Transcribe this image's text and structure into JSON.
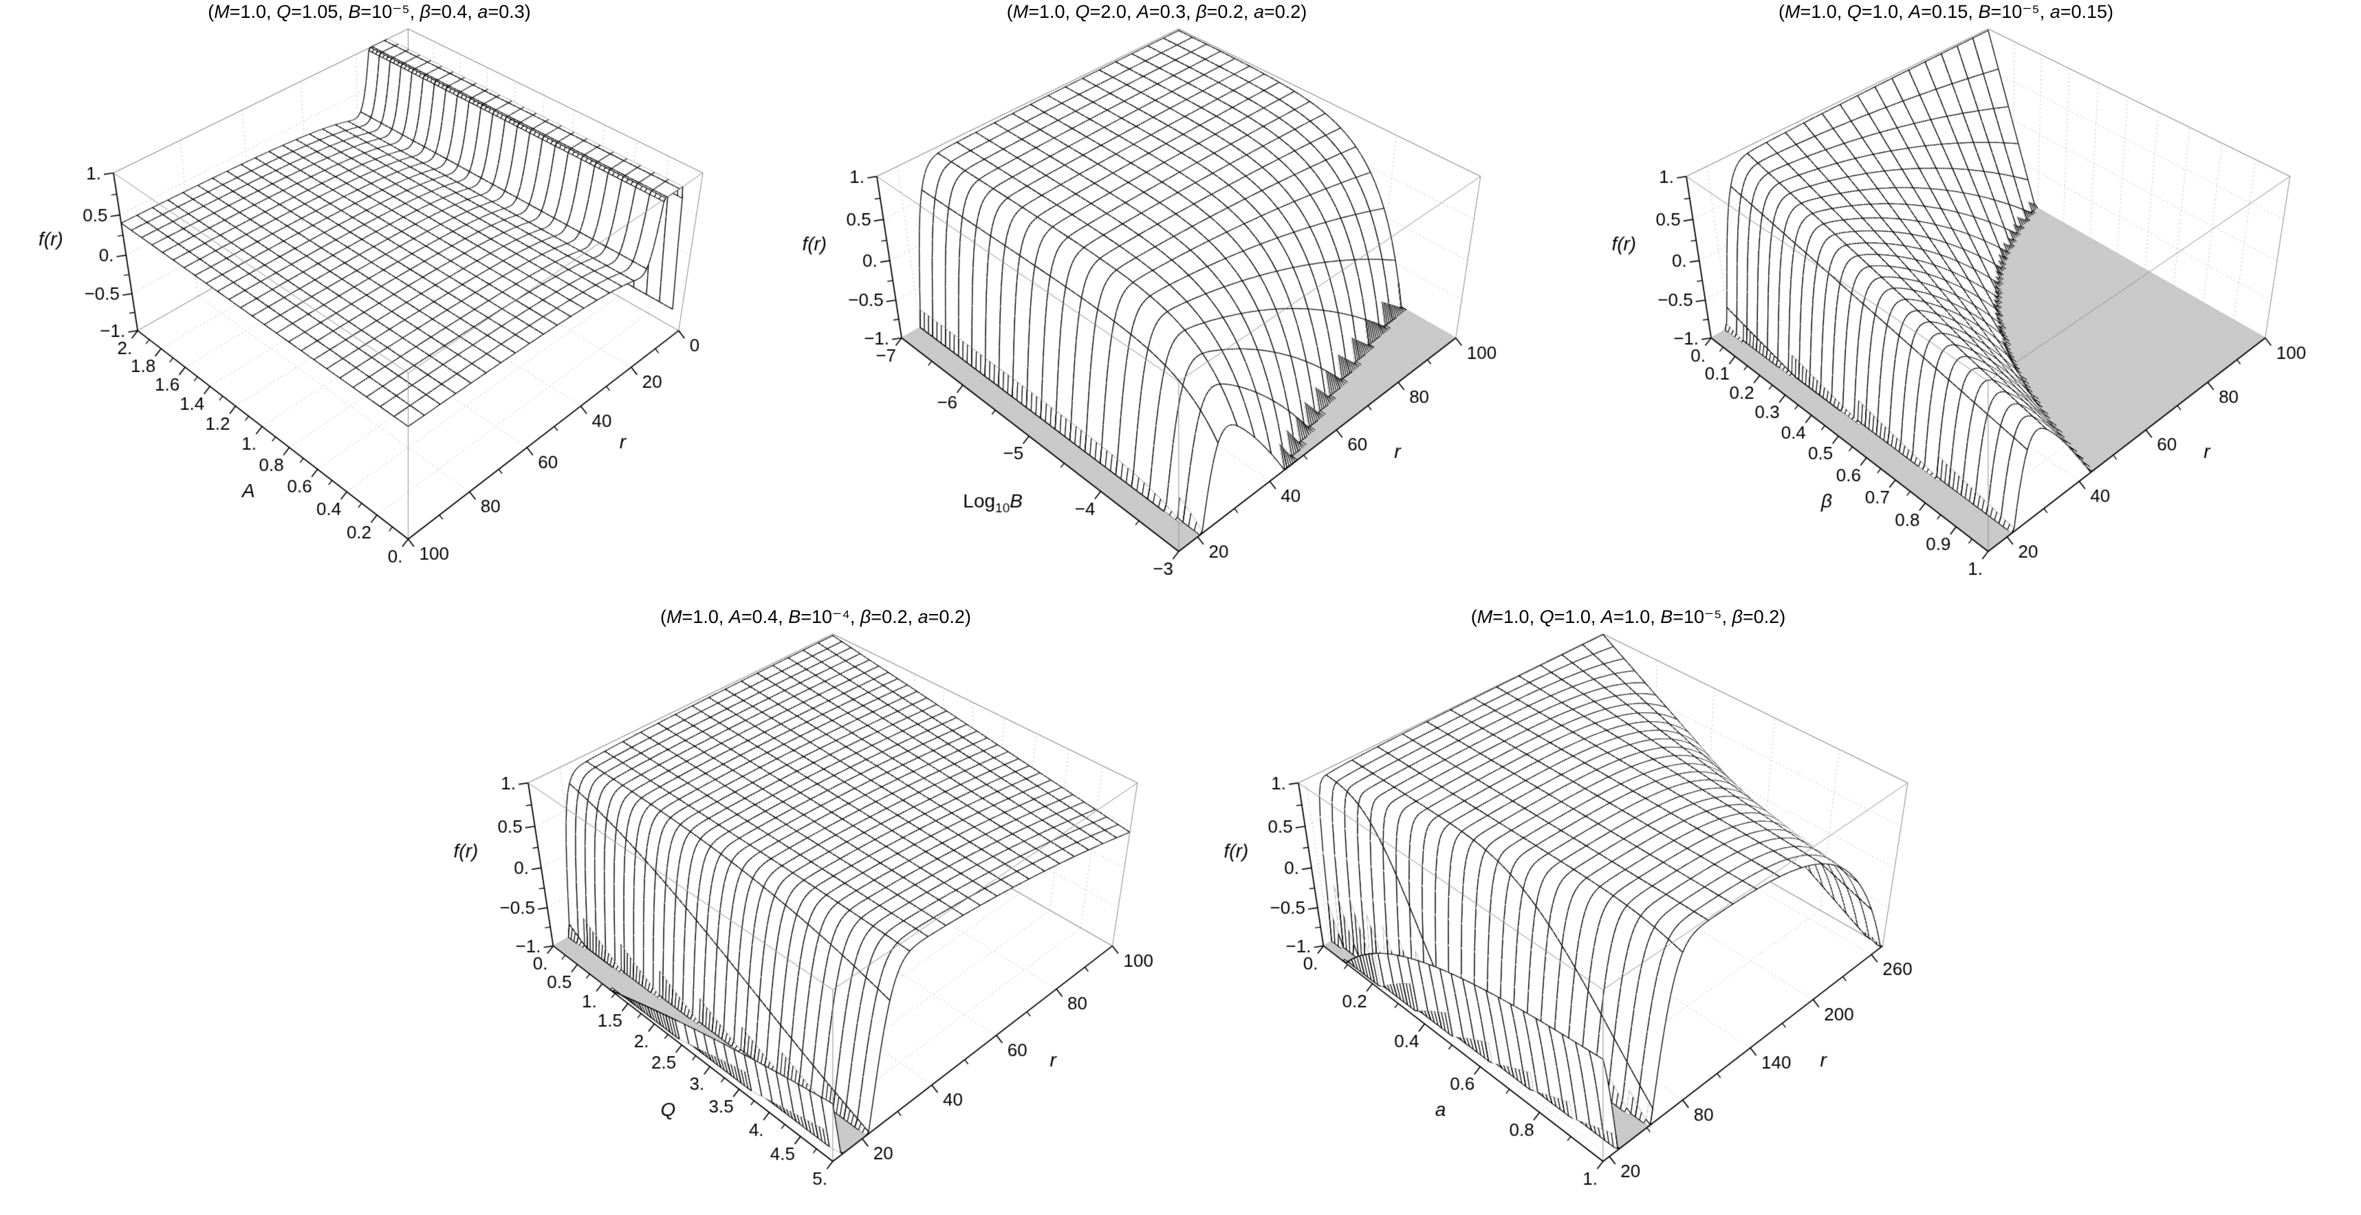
{
  "figure": {
    "kind": "5-panel 3D surface figure (Mathematica-style Plot3D wireframes of a black-hole metric function)",
    "background": "#ffffff",
    "colors": {
      "mesh": "#000000",
      "surface_fill": "#ffffff",
      "clip_fill": "#c9c9c9",
      "box_edge": "#8f8f8f",
      "grid_faint": "#bdbdbd",
      "text": "#000000"
    }
  },
  "chart_data": [
    {
      "type": "surface",
      "title": "(M=1.0, Q=1.05, B=10⁻⁵, β=0.4, a=0.3)",
      "fixed_parameters": {
        "M": "1.0",
        "Q": "1.05",
        "B": "10⁻⁵",
        "β": "0.4",
        "a": "0.3"
      },
      "z_axis": {
        "label": "f(r)",
        "range": [
          -1,
          1
        ],
        "ticks": [
          {
            "v": 1,
            "label": "1."
          },
          {
            "v": 0.5,
            "label": "0.5"
          },
          {
            "v": 0,
            "label": "0."
          },
          {
            "v": -0.5,
            "label": "−0.5"
          },
          {
            "v": -1,
            "label": "−1."
          }
        ]
      },
      "param_axis": {
        "label": "A",
        "range": [
          2,
          0
        ],
        "ticks": [
          {
            "v": 2,
            "label": "2."
          },
          {
            "v": 1.8,
            "label": "1.8"
          },
          {
            "v": 1.6,
            "label": "1.6"
          },
          {
            "v": 1.4,
            "label": "1.4"
          },
          {
            "v": 1.2,
            "label": "1.2"
          },
          {
            "v": 1,
            "label": "1."
          },
          {
            "v": 0.8,
            "label": "0.8"
          },
          {
            "v": 0.6,
            "label": "0.6"
          },
          {
            "v": 0.4,
            "label": "0.4"
          },
          {
            "v": 0.2,
            "label": "0.2"
          },
          {
            "v": 0,
            "label": "0."
          }
        ]
      },
      "r_axis": {
        "label": "r",
        "range": [
          100,
          0
        ],
        "ticks": [
          {
            "v": 0,
            "label": "0"
          },
          {
            "v": 20,
            "label": "20"
          },
          {
            "v": 40,
            "label": "40"
          },
          {
            "v": 60,
            "label": "60"
          },
          {
            "v": 80,
            "label": "80"
          },
          {
            "v": 100,
            "label": "100"
          }
        ]
      },
      "mesh": {
        "param_lines": 25,
        "r_lines": 21,
        "sub_param": 3,
        "sub_r": 8
      },
      "surface_model": {
        "c0": 0.46,
        "c1": -6,
        "c2": 0,
        "dip": {
          "d0": 2.2,
          "d1": 0,
          "r0": 11,
          "r1": 0,
          "w0": 4.5,
          "w1": 0
        },
        "droop": {
          "k0": 0,
          "k1": 0,
          "rref": 100,
          "pow": 2
        },
        "r_surface": [
          4.5,
          100
        ]
      },
      "clip": {
        "low": -1,
        "high": 1
      },
      "notes": "Flat low plateau f≈0.1–0.45 over most of (A,r); sharp ridge near r≈11 diverges upward and is clipped at f=1, forming a wall of vertical mesh spikes across all A."
    },
    {
      "type": "surface",
      "title": "(M=1.0, Q=2.0, A=0.3, β=0.2, a=0.2)",
      "fixed_parameters": {
        "M": "1.0",
        "Q": "2.0",
        "A": "0.3",
        "β": "0.2",
        "a": "0.2"
      },
      "z_axis": {
        "label": "f(r)",
        "range": [
          -1,
          1
        ],
        "ticks": [
          {
            "v": 1,
            "label": "1."
          },
          {
            "v": 0.5,
            "label": "0.5"
          },
          {
            "v": 0,
            "label": "0."
          },
          {
            "v": -0.5,
            "label": "−0.5"
          },
          {
            "v": -1,
            "label": "−1."
          }
        ]
      },
      "param_axis": {
        "label": "Log₁₀B",
        "range": [
          -7,
          -3
        ],
        "ticks": [
          {
            "v": -7,
            "label": "−7"
          },
          {
            "v": -6,
            "label": "−6"
          },
          {
            "v": -5,
            "label": "−5"
          },
          {
            "v": -4,
            "label": "−4"
          },
          {
            "v": -3,
            "label": "−3"
          }
        ]
      },
      "r_axis": {
        "label": "r",
        "range": [
          15,
          100
        ],
        "ticks": [
          {
            "v": 20,
            "label": "20"
          },
          {
            "v": 40,
            "label": "40"
          },
          {
            "v": 60,
            "label": "60"
          },
          {
            "v": 80,
            "label": "80"
          },
          {
            "v": 100,
            "label": "100"
          }
        ]
      },
      "mesh": {
        "param_lines": 20,
        "r_lines": 18,
        "sub_param": 3,
        "sub_r": 8
      },
      "surface_model": {
        "c0": 1,
        "c1": -2,
        "c2": 4,
        "dip": {
          "d0": -2.6,
          "d1": 0,
          "r0": 17,
          "r1": 0,
          "w0": 5.5,
          "w1": 0
        },
        "droop_exp": {
          "a0": -7,
          "a1": 4,
          "pow": 2
        },
        "r_surface": [
          15,
          100
        ]
      },
      "clip": {
        "low": -1,
        "high": 1
      },
      "notes": "Comb of deep V-dips (clipped at f=−1) near r≈15–20 for every B; plateau f≈0.9; for large B (Log₁₀B→−3) the −B r² term drags f below −1 for r≳40, shown as a gray clipped triangle at the front-right corner."
    },
    {
      "type": "surface",
      "title": "(M=1.0, Q=1.0, A=0.15, B=10⁻⁵, a=0.15)",
      "fixed_parameters": {
        "M": "1.0",
        "Q": "1.0",
        "A": "0.15",
        "B": "10⁻⁵",
        "a": "0.15"
      },
      "z_axis": {
        "label": "f(r)",
        "range": [
          -1,
          1
        ],
        "ticks": [
          {
            "v": 1,
            "label": "1."
          },
          {
            "v": 0.5,
            "label": "0.5"
          },
          {
            "v": 0,
            "label": "0."
          },
          {
            "v": -0.5,
            "label": "−0.5"
          },
          {
            "v": -1,
            "label": "−1."
          }
        ]
      },
      "param_axis": {
        "label": "β",
        "range": [
          0,
          1
        ],
        "ticks": [
          {
            "v": 0,
            "label": "0."
          },
          {
            "v": 0.1,
            "label": "0.1"
          },
          {
            "v": 0.2,
            "label": "0.2"
          },
          {
            "v": 0.3,
            "label": "0.3"
          },
          {
            "v": 0.4,
            "label": "0.4"
          },
          {
            "v": 0.5,
            "label": "0.5"
          },
          {
            "v": 0.6,
            "label": "0.6"
          },
          {
            "v": 0.7,
            "label": "0.7"
          },
          {
            "v": 0.8,
            "label": "0.8"
          },
          {
            "v": 0.9,
            "label": "0.9"
          },
          {
            "v": 1,
            "label": "1."
          }
        ]
      },
      "r_axis": {
        "label": "r",
        "range": [
          15,
          100
        ],
        "ticks": [
          {
            "v": 20,
            "label": "20"
          },
          {
            "v": 40,
            "label": "40"
          },
          {
            "v": 60,
            "label": "60"
          },
          {
            "v": 80,
            "label": "80"
          },
          {
            "v": 100,
            "label": "100"
          }
        ]
      },
      "mesh": {
        "param_lines": 26,
        "r_lines": 18,
        "sub_param": 3,
        "sub_r": 8
      },
      "surface_model": {
        "c0": 1,
        "c1": -2,
        "c2": 1,
        "dip": {
          "d0": -2.2,
          "d1": -0.8,
          "r0": 17,
          "r1": 0,
          "w0": 5.5,
          "w1": 0
        },
        "droop": {
          "k0": 0,
          "k1": 1,
          "rref": 31,
          "pow": 2
        },
        "r_surface": [
          15,
          100
        ]
      },
      "clip": {
        "low": -1,
        "high": 1
      },
      "notes": "Comb of clipped V-dips near r≈15–20 for every β; plateau f≈0.9; increasing β pulls f below −1 at large r, producing a large gray clipped wedge spreading from the front-right corner (r≈40 at β=1 up to much of the r=100 edge)."
    },
    {
      "type": "surface",
      "title": "(M=1.0, A=0.4, B=10⁻⁴, β=0.2, a=0.2)",
      "fixed_parameters": {
        "M": "1.0",
        "A": "0.4",
        "B": "10⁻⁴",
        "β": "0.2",
        "a": "0.2"
      },
      "z_axis": {
        "label": "f(r)",
        "range": [
          -1,
          1
        ],
        "ticks": [
          {
            "v": 1,
            "label": "1."
          },
          {
            "v": 0.5,
            "label": "0.5"
          },
          {
            "v": 0,
            "label": "0."
          },
          {
            "v": -0.5,
            "label": "−0.5"
          },
          {
            "v": -1,
            "label": "−1."
          }
        ]
      },
      "param_axis": {
        "label": "Q",
        "range": [
          0,
          5
        ],
        "ticks": [
          {
            "v": 0,
            "label": "0."
          },
          {
            "v": 0.5,
            "label": "0.5"
          },
          {
            "v": 1,
            "label": "1."
          },
          {
            "v": 1.5,
            "label": "1.5"
          },
          {
            "v": 2,
            "label": "2."
          },
          {
            "v": 2.5,
            "label": "2.5"
          },
          {
            "v": 3,
            "label": "3."
          },
          {
            "v": 3.5,
            "label": "3.5"
          },
          {
            "v": 4,
            "label": "4."
          },
          {
            "v": 4.5,
            "label": "4.5"
          },
          {
            "v": 5,
            "label": "5."
          }
        ]
      },
      "r_axis": {
        "label": "r",
        "range": [
          12,
          100
        ],
        "ticks": [
          {
            "v": 20,
            "label": "20"
          },
          {
            "v": 40,
            "label": "40"
          },
          {
            "v": 60,
            "label": "60"
          },
          {
            "v": 80,
            "label": "80"
          },
          {
            "v": 100,
            "label": "100"
          }
        ]
      },
      "mesh": {
        "param_lines": 30,
        "r_lines": 19,
        "sub_param": 3,
        "sub_r": 7
      },
      "surface_model": {
        "c0": 1,
        "c1": -2,
        "c2": 0,
        "dip": {
          "d0": -2.6,
          "d1": 0,
          "r0": 14,
          "r1": 4,
          "w0": 4.5,
          "w1": 2
        },
        "droop": {
          "k0": 0,
          "k1": 0.55,
          "rref": 100,
          "pow": 2
        },
        "r_surface": [
          12,
          100
        ]
      },
      "clip": {
        "low": -1,
        "high": 1
      },
      "notes": "Dense comb of clipped V-dips near r≈14–25 for every Q (slightly wider and shifted for large Q); broad plateau f≈0.9 with mild downward bend toward large r at large Q; no large clipped region at the far corner."
    },
    {
      "type": "surface",
      "title": "(M=1.0, Q=1.0, A=1.0, B=10⁻⁵, β=0.2)",
      "fixed_parameters": {
        "M": "1.0",
        "Q": "1.0",
        "A": "1.0",
        "B": "10⁻⁵",
        "β": "0.2"
      },
      "z_axis": {
        "label": "f(r)",
        "range": [
          -1,
          1
        ],
        "ticks": [
          {
            "v": 1,
            "label": "1."
          },
          {
            "v": 0.5,
            "label": "0.5"
          },
          {
            "v": 0,
            "label": "0."
          },
          {
            "v": -0.5,
            "label": "−0.5"
          },
          {
            "v": -1,
            "label": "−1."
          }
        ]
      },
      "param_axis": {
        "label": "a",
        "range": [
          0,
          1
        ],
        "ticks": [
          {
            "v": 0,
            "label": "0."
          },
          {
            "v": 0.2,
            "label": "0.2"
          },
          {
            "v": 0.4,
            "label": "0.4"
          },
          {
            "v": 0.6,
            "label": "0.6"
          },
          {
            "v": 0.8,
            "label": "0.8"
          },
          {
            "v": 1,
            "label": "1."
          }
        ]
      },
      "r_axis": {
        "label": "r",
        "range": [
          15,
          272
        ],
        "ticks": [
          {
            "v": 20,
            "label": "20"
          },
          {
            "v": 80,
            "label": "80"
          },
          {
            "v": 140,
            "label": "140"
          },
          {
            "v": 200,
            "label": "200"
          },
          {
            "v": 260,
            "label": "260"
          }
        ]
      },
      "mesh": {
        "param_lines": 26,
        "r_lines": 14,
        "sub_param": 3,
        "sub_r": 12
      },
      "surface_model": {
        "c0": 1,
        "c1": -2,
        "c2": 0,
        "dip": {
          "d0": -3,
          "d1": 0,
          "r0": 18,
          "r1": 22,
          "w0": 6,
          "w1": 14
        },
        "droop": {
          "k0": 0,
          "k1": 2.1,
          "rref": 272,
          "pow": 6
        },
        "r_surface": [
          15,
          272
        ]
      },
      "clip": {
        "low": -1,
        "high": 1
      },
      "notes": "Tall comb of clipped dips at small r widening toward a=1 (reaching r≈60); high plateau f≈0.95 out to r≈200; at a≈1 the surface plunges again very near r≈260–270, leaving a small gray clipped triangle at the right corner."
    }
  ]
}
